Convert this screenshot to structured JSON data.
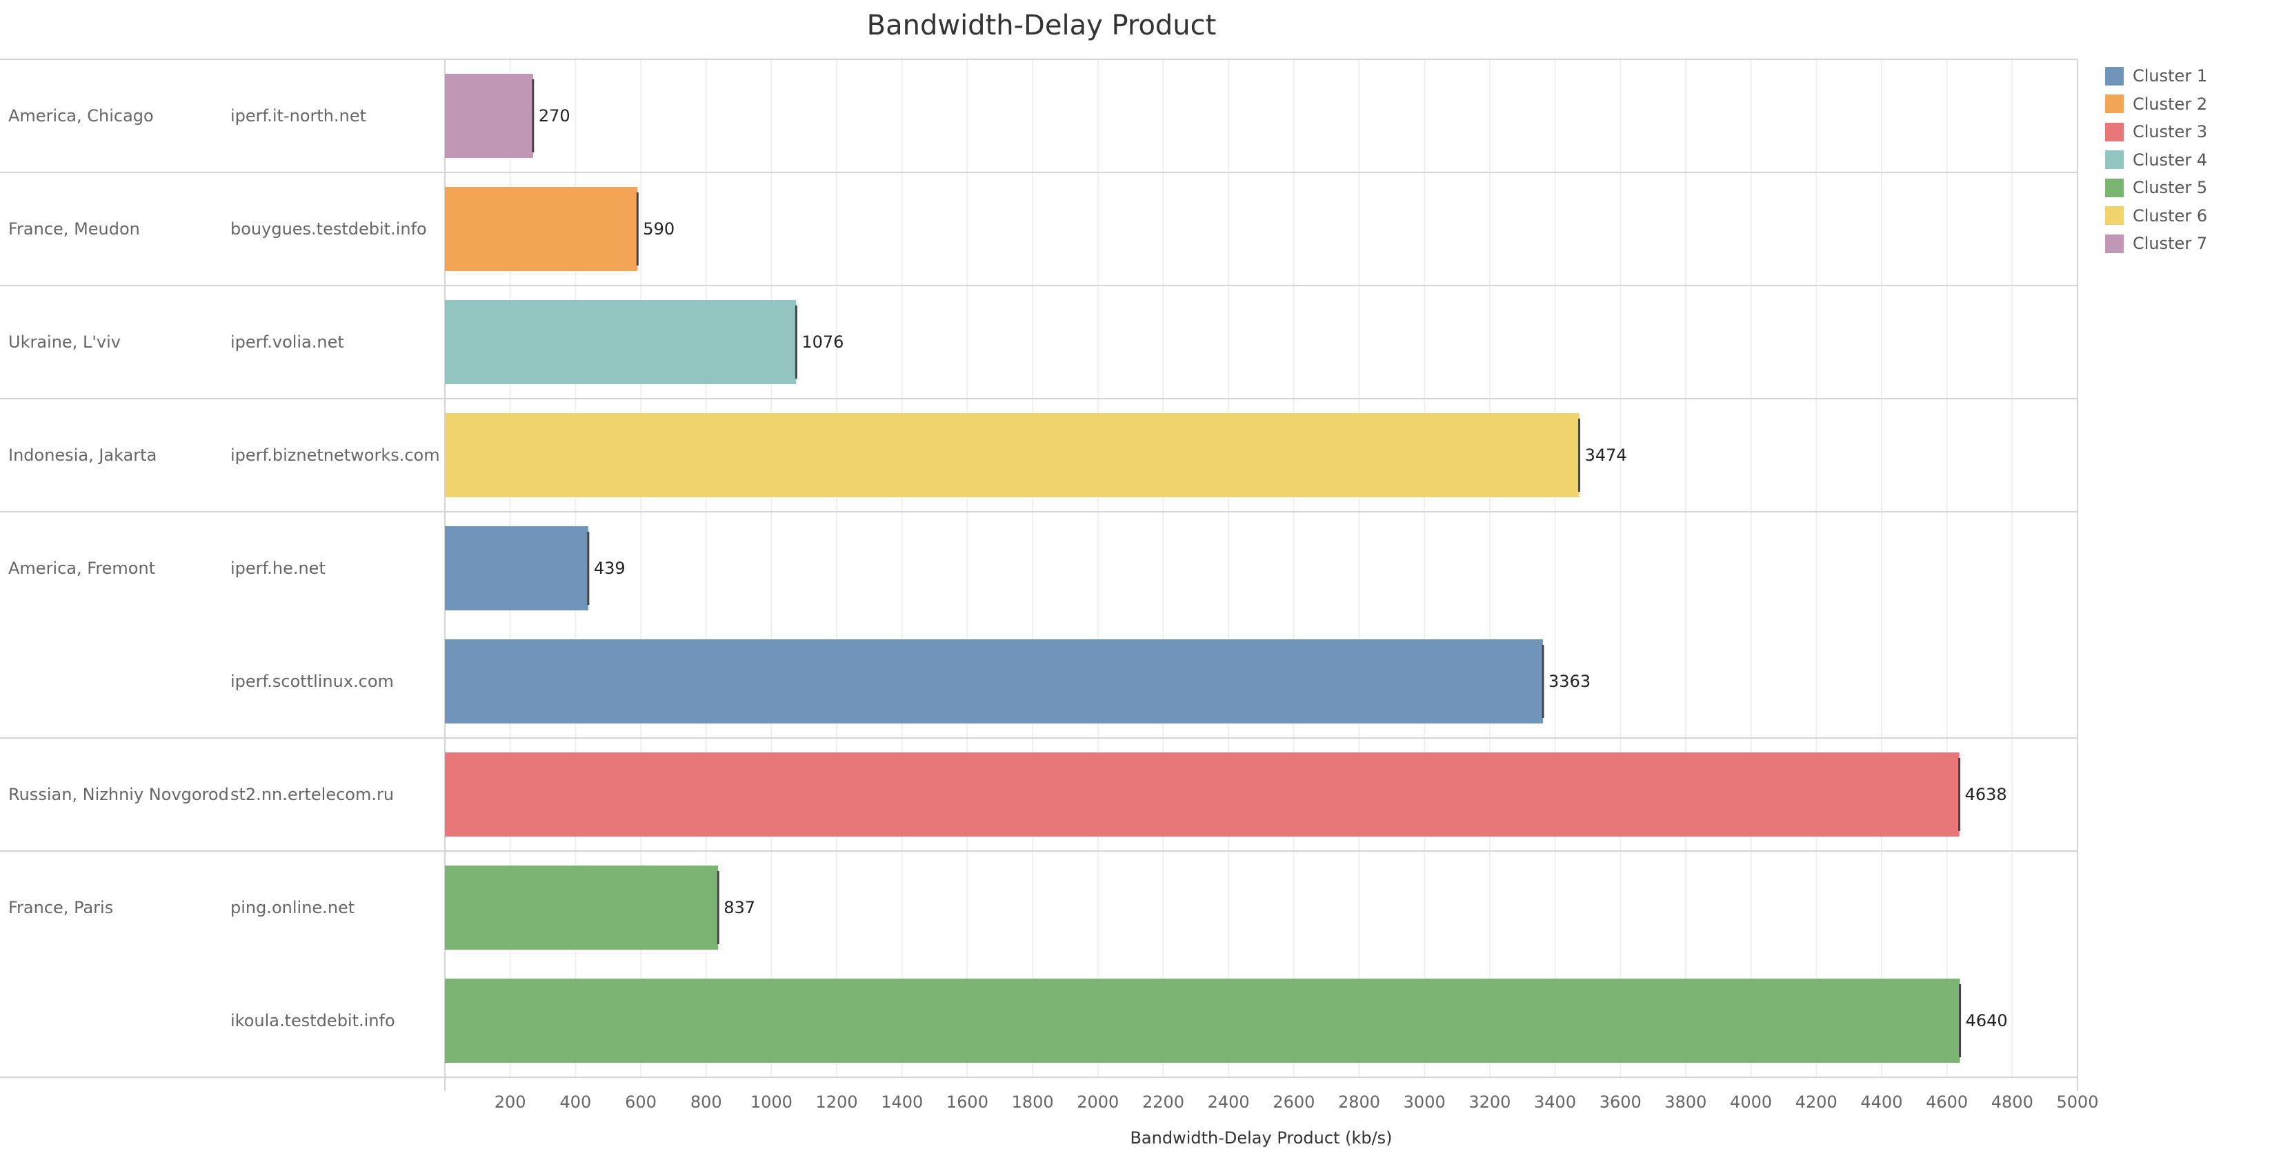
{
  "chart_data": {
    "type": "bar",
    "orientation": "horizontal",
    "title": "Bandwidth-Delay Product",
    "xlabel": "Bandwidth-Delay Product (kb/s)",
    "xlim": [
      0,
      5000
    ],
    "xticks": [
      200,
      400,
      600,
      800,
      1000,
      1200,
      1400,
      1600,
      1800,
      2000,
      2200,
      2400,
      2600,
      2800,
      3000,
      3200,
      3400,
      3600,
      3800,
      4000,
      4200,
      4400,
      4600,
      4800,
      5000
    ],
    "grid": true,
    "legend_position": "right",
    "groups": [
      {
        "location": "America, Chicago",
        "rows": [
          {
            "host": "iperf.it-north.net",
            "value": 270,
            "cluster": "Cluster 7"
          }
        ]
      },
      {
        "location": "France, Meudon",
        "rows": [
          {
            "host": "bouygues.testdebit.info",
            "value": 590,
            "cluster": "Cluster 2"
          }
        ]
      },
      {
        "location": "Ukraine, L'viv",
        "rows": [
          {
            "host": "iperf.volia.net",
            "value": 1076,
            "cluster": "Cluster 4"
          }
        ]
      },
      {
        "location": "Indonesia, Jakarta",
        "rows": [
          {
            "host": "iperf.biznetnetworks.com",
            "value": 3474,
            "cluster": "Cluster 6"
          }
        ]
      },
      {
        "location": "America, Fremont",
        "rows": [
          {
            "host": "iperf.he.net",
            "value": 439,
            "cluster": "Cluster 1"
          },
          {
            "host": "iperf.scottlinux.com",
            "value": 3363,
            "cluster": "Cluster 1"
          }
        ]
      },
      {
        "location": "Russian, Nizhniy Novgorod",
        "rows": [
          {
            "host": "st2.nn.ertelecom.ru",
            "value": 4638,
            "cluster": "Cluster 3"
          }
        ]
      },
      {
        "location": "France, Paris",
        "rows": [
          {
            "host": "ping.online.net",
            "value": 837,
            "cluster": "Cluster 5"
          },
          {
            "host": "ikoula.testdebit.info",
            "value": 4640,
            "cluster": "Cluster 5"
          }
        ]
      }
    ],
    "legend": [
      {
        "name": "Cluster 1",
        "color": "#7094ba"
      },
      {
        "name": "Cluster 2",
        "color": "#f4a455"
      },
      {
        "name": "Cluster 3",
        "color": "#e8777a"
      },
      {
        "name": "Cluster 4",
        "color": "#93c5c0"
      },
      {
        "name": "Cluster 5",
        "color": "#7bb472"
      },
      {
        "name": "Cluster 6",
        "color": "#f0d36c"
      },
      {
        "name": "Cluster 7",
        "color": "#c197b6"
      }
    ]
  }
}
